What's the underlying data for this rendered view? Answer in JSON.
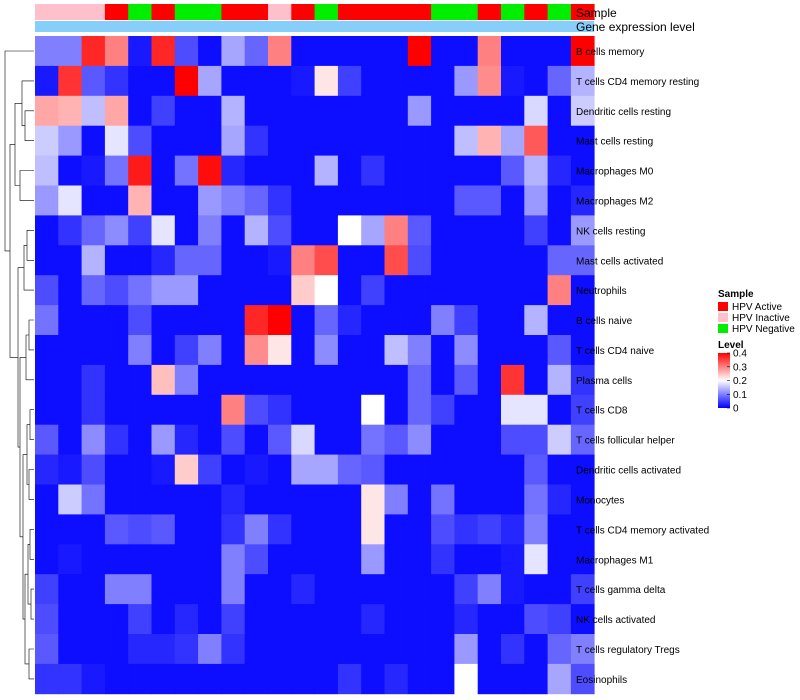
{
  "chart_data": {
    "type": "heatmap",
    "annotation_titles": [
      "Sample",
      "Gene expression level"
    ],
    "row_labels": [
      "B cells memory",
      "T cells CD4 memory resting",
      "Dendritic cells resting",
      "Mast cells resting",
      "Macrophages M0",
      "Macrophages M2",
      "NK cells resting",
      "Mast cells activated",
      "Neutrophils",
      "B cells naive",
      "T cells CD4 naive",
      "Plasma cells",
      "T cells CD8",
      "T cells follicular helper",
      "Dendritic cells activated",
      "Monocytes",
      "T cells CD4 memory activated",
      "Macrophages M1",
      "T cells gamma delta",
      "NK cells activated",
      "T cells regulatory  Tregs",
      "Eosinophils"
    ],
    "sample_groups": [
      "HPV Inactive",
      "HPV Inactive",
      "HPV Inactive",
      "HPV Active",
      "HPV Negative",
      "HPV Active",
      "HPV Negative",
      "HPV Negative",
      "HPV Active",
      "HPV Active",
      "HPV Inactive",
      "HPV Active",
      "HPV Negative",
      "HPV Active",
      "HPV Active",
      "HPV Active",
      "HPV Active",
      "HPV Negative",
      "HPV Negative",
      "HPV Active",
      "HPV Negative",
      "HPV Active",
      "HPV Negative",
      "HPV Active"
    ],
    "values": [
      [
        0.1,
        0.1,
        0.37,
        0.3,
        0.02,
        0.37,
        0.06,
        0.01,
        0.13,
        0.08,
        0.3,
        0.01,
        0.01,
        0.01,
        0.01,
        0.01,
        0.4,
        0.01,
        0.01,
        0.3,
        0.01,
        0.01,
        0.01,
        0.4
      ],
      [
        0.02,
        0.36,
        0.07,
        0.04,
        0.01,
        0.01,
        0.4,
        0.13,
        0.01,
        0.01,
        0.01,
        0.02,
        0.22,
        0.05,
        0.01,
        0.01,
        0.01,
        0.01,
        0.12,
        0.29,
        0.02,
        0.01,
        0.08,
        0.14
      ],
      [
        0.27,
        0.26,
        0.15,
        0.27,
        0.01,
        0.05,
        0.01,
        0.01,
        0.14,
        0.01,
        0.01,
        0.01,
        0.01,
        0.01,
        0.01,
        0.01,
        0.12,
        0.01,
        0.01,
        0.01,
        0.01,
        0.17,
        0.01,
        0.16
      ],
      [
        0.16,
        0.12,
        0.01,
        0.18,
        0.06,
        0.01,
        0.01,
        0.01,
        0.13,
        0.04,
        0.01,
        0.01,
        0.01,
        0.01,
        0.01,
        0.01,
        0.01,
        0.01,
        0.15,
        0.26,
        0.13,
        0.33,
        0.01,
        0.01
      ],
      [
        0.15,
        0.01,
        0.02,
        0.09,
        0.38,
        0.01,
        0.09,
        0.39,
        0.03,
        0.01,
        0.01,
        0.01,
        0.14,
        0.01,
        0.04,
        0.01,
        0.01,
        0.01,
        0.01,
        0.01,
        0.07,
        0.14,
        0.03,
        0.01
      ],
      [
        0.12,
        0.18,
        0.01,
        0.01,
        0.26,
        0.01,
        0.01,
        0.12,
        0.1,
        0.08,
        0.04,
        0.01,
        0.01,
        0.01,
        0.01,
        0.01,
        0.01,
        0.01,
        0.07,
        0.07,
        0.01,
        0.12,
        0.01,
        0.03
      ],
      [
        0.01,
        0.04,
        0.08,
        0.11,
        0.05,
        0.18,
        0.01,
        0.1,
        0.01,
        0.14,
        0.06,
        0.01,
        0.01,
        0.2,
        0.13,
        0.3,
        0.07,
        0.01,
        0.01,
        0.01,
        0.01,
        0.05,
        0.01,
        0.12
      ],
      [
        0.01,
        0.01,
        0.14,
        0.01,
        0.01,
        0.03,
        0.08,
        0.08,
        0.01,
        0.01,
        0.02,
        0.3,
        0.34,
        0.01,
        0.01,
        0.34,
        0.06,
        0.01,
        0.01,
        0.01,
        0.01,
        0.01,
        0.08,
        0.08
      ],
      [
        0.06,
        0.01,
        0.08,
        0.06,
        0.09,
        0.12,
        0.12,
        0.01,
        0.01,
        0.01,
        0.01,
        0.24,
        0.2,
        0.01,
        0.05,
        0.01,
        0.01,
        0.01,
        0.01,
        0.01,
        0.01,
        0.01,
        0.3,
        0.01
      ],
      [
        0.09,
        0.01,
        0.01,
        0.01,
        0.06,
        0.01,
        0.01,
        0.01,
        0.01,
        0.37,
        0.4,
        0.01,
        0.08,
        0.03,
        0.01,
        0.01,
        0.01,
        0.1,
        0.05,
        0.01,
        0.01,
        0.14,
        0.01,
        0.01
      ],
      [
        0.01,
        0.01,
        0.01,
        0.01,
        0.1,
        0.01,
        0.05,
        0.1,
        0.01,
        0.29,
        0.22,
        0.01,
        0.11,
        0.01,
        0.01,
        0.15,
        0.1,
        0.01,
        0.11,
        0.01,
        0.01,
        0.01,
        0.07,
        0.01
      ],
      [
        0.01,
        0.01,
        0.04,
        0.01,
        0.01,
        0.25,
        0.1,
        0.01,
        0.01,
        0.01,
        0.01,
        0.01,
        0.01,
        0.01,
        0.01,
        0.01,
        0.08,
        0.01,
        0.07,
        0.01,
        0.36,
        0.01,
        0.14,
        0.04
      ],
      [
        0.01,
        0.01,
        0.04,
        0.01,
        0.01,
        0.01,
        0.01,
        0.01,
        0.3,
        0.06,
        0.04,
        0.01,
        0.01,
        0.01,
        0.2,
        0.01,
        0.08,
        0.05,
        0.01,
        0.01,
        0.18,
        0.18,
        0.01,
        0.05
      ],
      [
        0.07,
        0.01,
        0.11,
        0.04,
        0.01,
        0.12,
        0.03,
        0.01,
        0.06,
        0.01,
        0.07,
        0.17,
        0.01,
        0.01,
        0.09,
        0.07,
        0.11,
        0.01,
        0.01,
        0.01,
        0.06,
        0.06,
        0.16,
        0.08
      ],
      [
        0.03,
        0.02,
        0.06,
        0.01,
        0.01,
        0.02,
        0.24,
        0.05,
        0.01,
        0.02,
        0.01,
        0.13,
        0.13,
        0.08,
        0.07,
        0.01,
        0.01,
        0.01,
        0.01,
        0.01,
        0.01,
        0.07,
        0.01,
        0.01
      ],
      [
        0.01,
        0.16,
        0.09,
        0.01,
        0.01,
        0.01,
        0.01,
        0.01,
        0.03,
        0.01,
        0.01,
        0.01,
        0.01,
        0.01,
        0.22,
        0.1,
        0.01,
        0.09,
        0.01,
        0.01,
        0.01,
        0.09,
        0.03,
        0.01
      ],
      [
        0.01,
        0.01,
        0.01,
        0.07,
        0.06,
        0.07,
        0.01,
        0.01,
        0.04,
        0.1,
        0.04,
        0.01,
        0.01,
        0.01,
        0.22,
        0.01,
        0.01,
        0.06,
        0.04,
        0.05,
        0.03,
        0.1,
        0.01,
        0.01
      ],
      [
        0.01,
        0.02,
        0.01,
        0.01,
        0.01,
        0.01,
        0.01,
        0.01,
        0.1,
        0.06,
        0.01,
        0.01,
        0.01,
        0.01,
        0.12,
        0.01,
        0.01,
        0.04,
        0.01,
        0.01,
        0.02,
        0.18,
        0.01,
        0.01
      ],
      [
        0.05,
        0.01,
        0.01,
        0.1,
        0.1,
        0.01,
        0.01,
        0.01,
        0.1,
        0.01,
        0.01,
        0.03,
        0.01,
        0.01,
        0.01,
        0.01,
        0.01,
        0.01,
        0.05,
        0.1,
        0.02,
        0.01,
        0.01,
        0.05
      ],
      [
        0.06,
        0.01,
        0.01,
        0.01,
        0.05,
        0.01,
        0.03,
        0.01,
        0.05,
        0.01,
        0.01,
        0.01,
        0.01,
        0.01,
        0.03,
        0.01,
        0.01,
        0.01,
        0.03,
        0.01,
        0.01,
        0.06,
        0.05,
        0.01
      ],
      [
        0.07,
        0.01,
        0.01,
        0.01,
        0.03,
        0.03,
        0.04,
        0.1,
        0.04,
        0.01,
        0.01,
        0.01,
        0.01,
        0.01,
        0.01,
        0.01,
        0.01,
        0.01,
        0.12,
        0.01,
        0.04,
        0.01,
        0.08,
        0.1
      ],
      [
        0.04,
        0.04,
        0.02,
        0.01,
        0.01,
        0.01,
        0.01,
        0.01,
        0.01,
        0.01,
        0.01,
        0.01,
        0.01,
        0.04,
        0.01,
        0.03,
        0.01,
        0.01,
        0.2,
        0.01,
        0.01,
        0.01,
        0.13,
        0.06
      ]
    ],
    "legend_sample": {
      "title": "Sample",
      "entries": [
        {
          "label": "HPV Active",
          "color": "#ff0000"
        },
        {
          "label": "HPV Inactive",
          "color": "#ffc0cb"
        },
        {
          "label": "HPV Negative",
          "color": "#00ee00"
        }
      ]
    },
    "legend_level": {
      "title": "Level",
      "ticks": [
        "0.4",
        "0.3",
        "0.2",
        "0.1",
        "0"
      ],
      "tick_values": [
        0.4,
        0.3,
        0.2,
        0.1,
        0
      ],
      "range": [
        0,
        0.4
      ]
    },
    "colors": {
      "low": "#0000ff",
      "mid": "#ffffff",
      "high": "#ff0000",
      "expression_bar": "#87cefa"
    }
  }
}
